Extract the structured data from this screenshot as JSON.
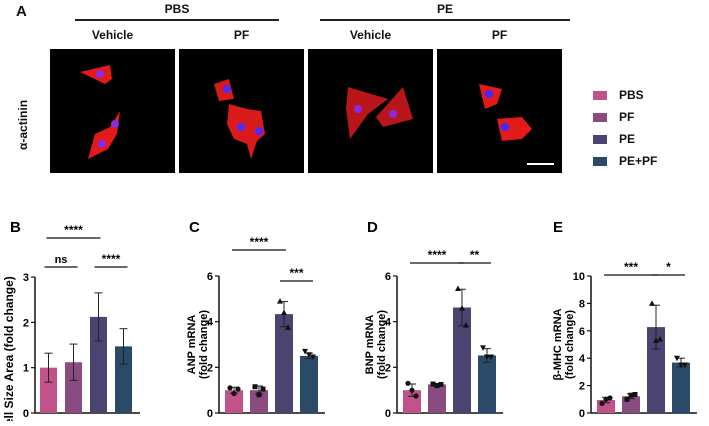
{
  "panel_a": {
    "letter": "A",
    "group_labels": [
      "PBS",
      "PE"
    ],
    "treatment_labels": [
      "Vehicle",
      "PF",
      "Vehicle",
      "PF"
    ],
    "row_label": "α-actinin"
  },
  "legend": {
    "items": [
      {
        "label": "PBS",
        "color": "#c2538a"
      },
      {
        "label": "PF",
        "color": "#8a4b80"
      },
      {
        "label": "PE",
        "color": "#4a4470"
      },
      {
        "label": "PE+PF",
        "color": "#2a4b68"
      }
    ]
  },
  "chart_data": [
    {
      "panel": "B",
      "type": "bar",
      "title": "",
      "categories": [
        "PBS",
        "PF",
        "PE",
        "PE+PF"
      ],
      "values": [
        1.0,
        1.12,
        2.12,
        1.47
      ],
      "error": [
        0.32,
        0.4,
        0.53,
        0.39
      ],
      "xlabel": "",
      "ylabel": "Cell Size Area (fold change)",
      "ylim": [
        0,
        3
      ],
      "yticks": [
        0,
        1,
        2,
        3
      ],
      "significance": [
        {
          "from": 0,
          "to": 2,
          "label": "****"
        },
        {
          "from": 0,
          "to": 1,
          "label": "ns"
        },
        {
          "from": 2,
          "to": 3,
          "label": "****"
        }
      ]
    },
    {
      "panel": "C",
      "type": "bar",
      "title": "",
      "categories": [
        "PBS",
        "PF",
        "PE",
        "PE+PF"
      ],
      "values": [
        1.0,
        1.0,
        4.33,
        2.5
      ],
      "points": [
        [
          1.1,
          0.85,
          1.05
        ],
        [
          1.15,
          0.8,
          1.05
        ],
        [
          4.9,
          4.4,
          3.75
        ],
        [
          2.7,
          2.55,
          2.45
        ]
      ],
      "error": [
        0.13,
        0.18,
        0.55,
        0.12
      ],
      "xlabel": "",
      "ylabel": "ANP mRNA (fold change)",
      "ylim": [
        0,
        6
      ],
      "yticks": [
        0,
        2,
        4,
        6
      ],
      "significance": [
        {
          "from": 0,
          "to": 2,
          "label": "****"
        },
        {
          "from": 2,
          "to": 3,
          "label": "***"
        }
      ]
    },
    {
      "panel": "D",
      "type": "bar",
      "title": "",
      "categories": [
        "PBS",
        "PF",
        "PE",
        "PE+PF"
      ],
      "values": [
        1.0,
        1.25,
        4.62,
        2.52
      ],
      "points": [
        [
          1.3,
          1.0,
          0.75
        ],
        [
          1.27,
          1.2,
          1.25
        ],
        [
          5.45,
          4.6,
          3.85
        ],
        [
          2.85,
          2.45,
          2.45
        ]
      ],
      "error": [
        0.27,
        0.04,
        0.8,
        0.3
      ],
      "xlabel": "",
      "ylabel": "BNP mRNA (fold change)",
      "ylim": [
        0,
        6
      ],
      "yticks": [
        0,
        2,
        4,
        6
      ],
      "significance": [
        {
          "from": 0,
          "to": 2,
          "label": "****"
        },
        {
          "from": 2,
          "to": 3,
          "label": "**"
        }
      ]
    },
    {
      "panel": "E",
      "type": "bar",
      "title": "",
      "categories": [
        "PBS",
        "PF",
        "PE",
        "PE+PF"
      ],
      "values": [
        0.95,
        1.22,
        6.27,
        3.68
      ],
      "points": [
        [
          0.7,
          1.0,
          1.1
        ],
        [
          1.0,
          1.3,
          1.35
        ],
        [
          8.0,
          5.3,
          5.4
        ],
        [
          4.0,
          3.5,
          3.5
        ]
      ],
      "error": [
        0.2,
        0.18,
        1.6,
        0.32
      ],
      "xlabel": "",
      "ylabel": "β-MHC mRNA (fold change)",
      "ylim": [
        0,
        10
      ],
      "yticks": [
        0,
        2,
        4,
        6,
        8,
        10
      ],
      "significance": [
        {
          "from": 0,
          "to": 2,
          "label": "***"
        },
        {
          "from": 2,
          "to": 3,
          "label": "*"
        }
      ]
    }
  ]
}
